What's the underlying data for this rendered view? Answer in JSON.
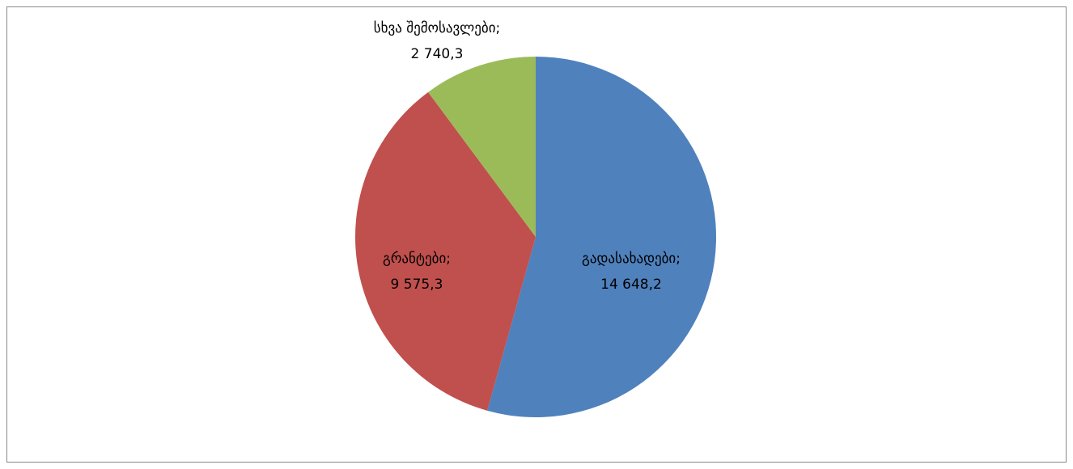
{
  "chart_data": {
    "type": "pie",
    "categories": [
      "გადასახადები;",
      "გრანტები;",
      "სხვა შემოსავლები;"
    ],
    "values": [
      14648.2,
      9575.3,
      2740.3
    ],
    "value_labels": [
      "14 648,2",
      "9 575,3",
      "2 740,3"
    ],
    "colors": [
      "#4f81bd",
      "#c0504d",
      "#9bbb59"
    ]
  }
}
